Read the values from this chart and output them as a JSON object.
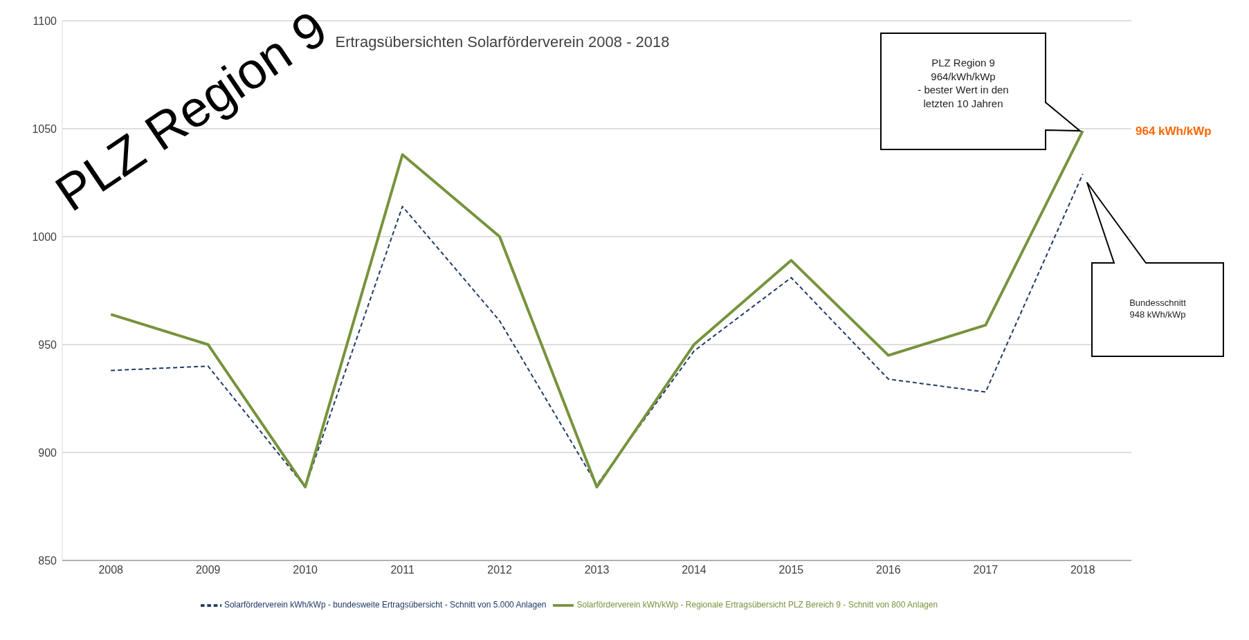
{
  "chart_data": {
    "type": "line",
    "title": "Ertragsübersichten Solarförderverein 2008 - 2018",
    "categories": [
      "2008",
      "2009",
      "2010",
      "2011",
      "2012",
      "2013",
      "2014",
      "2015",
      "2016",
      "2017",
      "2018"
    ],
    "series": [
      {
        "name": "Solarförderverein kWh/kWp - bundesweite Ertragsübersicht - Schnitt von 5.000 Anlagen",
        "color": "#1f3864",
        "line_style": "dashed",
        "values": [
          938,
          940,
          884,
          1014,
          961,
          885,
          947,
          981,
          934,
          928,
          1029
        ]
      },
      {
        "name": "Solarförderverein kWh/kWp - Regionale Ertragsübersicht PLZ Bereich 9  - Schnitt von 800 Anlagen",
        "color": "#77933c",
        "line_style": "solid",
        "values": [
          964,
          950,
          884,
          1038,
          1000,
          884,
          950,
          989,
          945,
          959,
          1049
        ]
      }
    ],
    "ylim": [
      850,
      1100
    ],
    "yticks": [
      850,
      900,
      950,
      1000,
      1050,
      1100
    ],
    "grid": "y",
    "legend": "bottom",
    "marker": "none",
    "annotations": [
      "PLZ Region 9",
      "PLZ Region 9\n964/kWh/kWp\n- bester Wert in den\nletzten 10 Jahren",
      "964 kWh/kWp",
      "Bundesschnitt\n948 kWh/kWp"
    ]
  }
}
